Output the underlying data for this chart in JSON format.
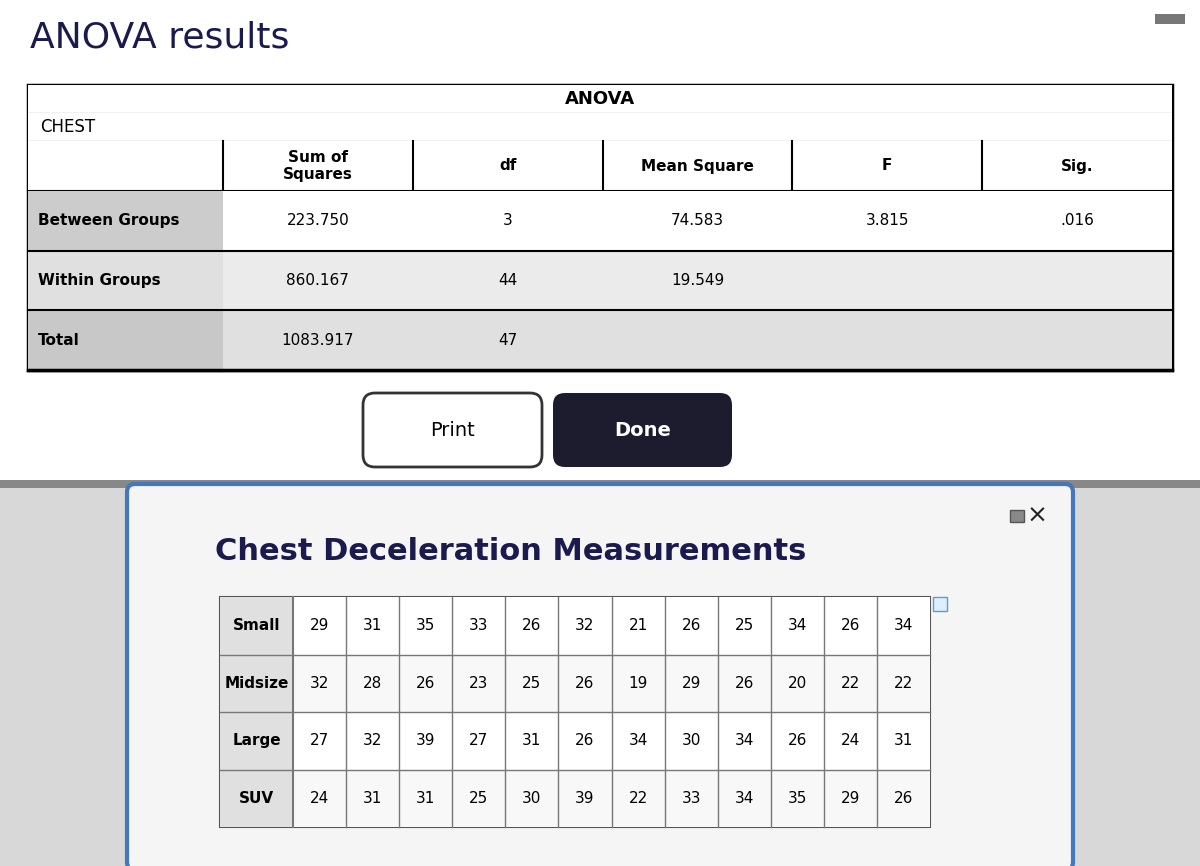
{
  "title": "ANOVA results",
  "title_color": "#1a1a4e",
  "bg_color": "#f0f0f0",
  "upper_bg": "#ffffff",
  "minimize_btn_color": "#777777",
  "anova_title": "ANOVA",
  "anova_subtitle": "CHEST",
  "anova_rows": [
    [
      "Between Groups",
      "223.750",
      "3",
      "74.583",
      "3.815",
      ".016"
    ],
    [
      "Within Groups",
      "860.167",
      "44",
      "19.549",
      "",
      ""
    ],
    [
      "Total",
      "1083.917",
      "47",
      "",
      "",
      ""
    ]
  ],
  "anova_row_label_bg": [
    "#c8c8c8",
    "#e0e0e0",
    "#c8c8c8"
  ],
  "anova_row_data_bg": [
    "#ffffff",
    "#f0f0f0",
    "#e8e8e8"
  ],
  "print_btn_text": "Print",
  "done_btn_text": "Done",
  "done_btn_bg": "#1c1c2e",
  "done_btn_text_color": "#ffffff",
  "print_btn_bg": "#ffffff",
  "print_btn_text_color": "#000000",
  "print_btn_border": "#333333",
  "dialog_title": "Chest Deceleration Measurements",
  "dialog_bg": "#f5f5f5",
  "dialog_border_color": "#4477bb",
  "dialog_title_color": "#1a1a4e",
  "data_rows": [
    [
      "Small",
      29,
      31,
      35,
      33,
      26,
      32,
      21,
      26,
      25,
      34,
      26,
      34
    ],
    [
      "Midsize",
      32,
      28,
      26,
      23,
      25,
      26,
      19,
      29,
      26,
      20,
      22,
      22
    ],
    [
      "Large",
      27,
      32,
      39,
      27,
      31,
      26,
      34,
      30,
      34,
      26,
      24,
      31
    ],
    [
      "SUV",
      24,
      31,
      31,
      25,
      30,
      39,
      22,
      33,
      34,
      35,
      29,
      26
    ]
  ]
}
